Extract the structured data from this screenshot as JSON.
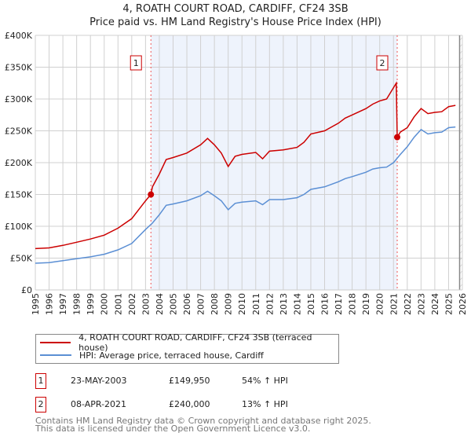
{
  "title": "4, ROATH COURT ROAD, CARDIFF, CF24 3SB",
  "subtitle": "Price paid vs. HM Land Registry's House Price Index (HPI)",
  "colors": {
    "property": "#cc0000",
    "hpi": "#5b8fd4",
    "shade": "#eef3fc"
  },
  "chart_data": {
    "type": "line",
    "title": "4, ROATH COURT ROAD, CARDIFF, CF24 3SB — Price paid vs. HM Land Registry's House Price Index (HPI)",
    "xlim": [
      1995,
      2026
    ],
    "ylim": [
      0,
      400000
    ],
    "x_ticks": [
      "1995",
      "1996",
      "1997",
      "1998",
      "1999",
      "2000",
      "2001",
      "2002",
      "2003",
      "2004",
      "2005",
      "2006",
      "2007",
      "2008",
      "2009",
      "2010",
      "2011",
      "2012",
      "2013",
      "2014",
      "2015",
      "2016",
      "2017",
      "2018",
      "2019",
      "2020",
      "2021",
      "2022",
      "2023",
      "2024",
      "2025",
      "2026"
    ],
    "y_ticks": [
      {
        "v": 0,
        "label": "£0"
      },
      {
        "v": 50000,
        "label": "£50K"
      },
      {
        "v": 100000,
        "label": "£100K"
      },
      {
        "v": 150000,
        "label": "£150K"
      },
      {
        "v": 200000,
        "label": "£200K"
      },
      {
        "v": 250000,
        "label": "£250K"
      },
      {
        "v": 300000,
        "label": "£300K"
      },
      {
        "v": 350000,
        "label": "£350K"
      },
      {
        "v": 400000,
        "label": "£400K"
      }
    ],
    "grid": true,
    "data_end": 2025.8,
    "series": [
      {
        "name": "4, ROATH COURT ROAD, CARDIFF, CF24 3SB (terraced house)",
        "x": [
          1995,
          1996,
          1997,
          1998,
          1999,
          2000,
          2001,
          2002,
          2003,
          2003.39,
          2003.5,
          2004,
          2004.5,
          2005,
          2006,
          2007,
          2007.5,
          2008,
          2008.5,
          2009,
          2009.5,
          2010,
          2011,
          2011.5,
          2012,
          2013,
          2014,
          2014.5,
          2015,
          2016,
          2017,
          2017.5,
          2018,
          2019,
          2019.5,
          2020,
          2020.5,
          2021.2,
          2021.27,
          2021.5,
          2022,
          2022.5,
          2023,
          2023.5,
          2024,
          2024.5,
          2025,
          2025.5
        ],
        "y": [
          65000,
          66000,
          70000,
          75000,
          80000,
          86000,
          97000,
          112000,
          140000,
          149950,
          162000,
          182000,
          205000,
          208000,
          215000,
          228000,
          238000,
          228000,
          215000,
          194000,
          210000,
          213000,
          216000,
          206000,
          218000,
          220000,
          224000,
          232000,
          245000,
          250000,
          262000,
          270000,
          275000,
          285000,
          292000,
          297000,
          300000,
          325000,
          240000,
          248000,
          255000,
          272000,
          285000,
          277000,
          279000,
          280000,
          288000,
          290000
        ]
      },
      {
        "name": "HPI: Average price, terraced house, Cardiff",
        "x": [
          1995,
          1996,
          1997,
          1998,
          1999,
          2000,
          2001,
          2002,
          2003,
          2003.5,
          2004,
          2004.5,
          2005,
          2006,
          2007,
          2007.5,
          2008,
          2008.5,
          2009,
          2009.5,
          2010,
          2011,
          2011.5,
          2012,
          2013,
          2014,
          2014.5,
          2015,
          2016,
          2017,
          2017.5,
          2018,
          2019,
          2019.5,
          2020,
          2020.5,
          2021,
          2021.5,
          2022,
          2022.5,
          2023,
          2023.5,
          2024,
          2024.5,
          2025,
          2025.5
        ],
        "y": [
          42000,
          43000,
          46000,
          49000,
          52000,
          56000,
          63000,
          73000,
          95000,
          105000,
          118000,
          133000,
          135000,
          140000,
          148000,
          155000,
          148000,
          140000,
          126000,
          136000,
          138000,
          140000,
          134000,
          142000,
          142000,
          145000,
          150000,
          158000,
          162000,
          170000,
          175000,
          178000,
          185000,
          190000,
          192000,
          193000,
          200000,
          213000,
          225000,
          240000,
          252000,
          245000,
          247000,
          248000,
          255000,
          256000
        ]
      }
    ],
    "sales": [
      {
        "id": "1",
        "x": 2003.39,
        "price": 149950,
        "date": "23-MAY-2003",
        "price_label": "£149,950",
        "delta": "54% ↑ HPI"
      },
      {
        "id": "2",
        "x": 2021.27,
        "price": 240000,
        "date": "08-APR-2021",
        "price_label": "£240,000",
        "delta": "13% ↑ HPI"
      }
    ]
  },
  "legend": {
    "property": "4, ROATH COURT ROAD, CARDIFF, CF24 3SB (terraced house)",
    "hpi": "HPI: Average price, terraced house, Cardiff"
  },
  "footer": {
    "line1": "Contains HM Land Registry data © Crown copyright and database right 2025.",
    "line2": "This data is licensed under the Open Government Licence v3.0."
  }
}
